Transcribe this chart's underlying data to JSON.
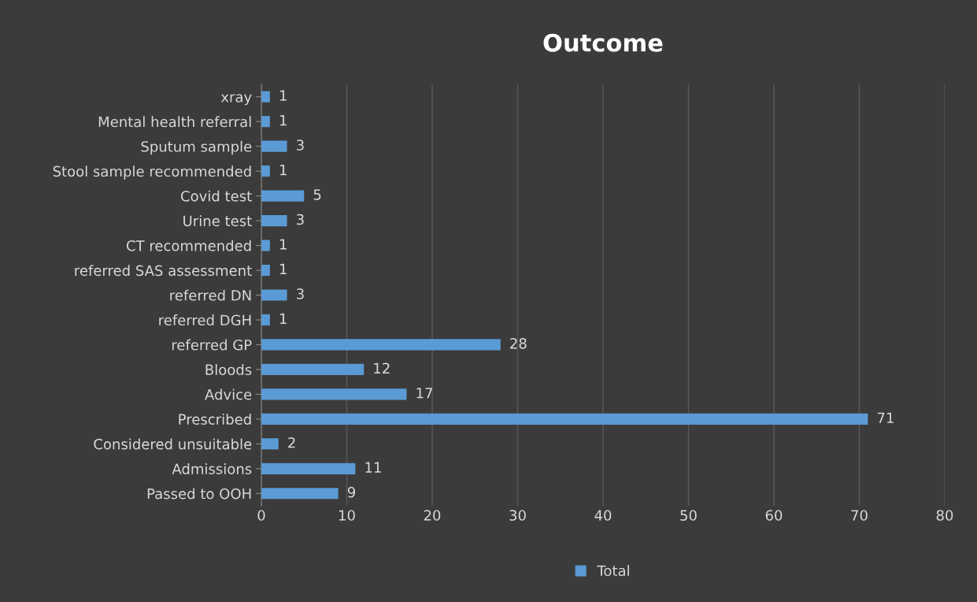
{
  "chart_data": {
    "type": "bar",
    "title": "Outcome",
    "orientation": "horizontal",
    "categories": [
      "xray",
      "Mental health referral",
      "Sputum sample",
      "Stool sample recommended",
      "Covid test",
      "Urine test",
      "CT recommended",
      "referred SAS assessment",
      "referred DN",
      "referred DGH",
      "referred GP",
      "Bloods",
      "Advice",
      "Prescribed",
      "Considered unsuitable",
      "Admissions",
      "Passed to OOH"
    ],
    "series": [
      {
        "name": "Total",
        "color": "#5b9bd5",
        "values": [
          1,
          1,
          3,
          1,
          5,
          3,
          1,
          1,
          3,
          1,
          28,
          12,
          17,
          71,
          2,
          11,
          9
        ]
      }
    ],
    "xlim": [
      0,
      80
    ],
    "xticks": [
      0,
      10,
      20,
      30,
      40,
      50,
      60,
      70,
      80
    ],
    "grid": "x",
    "legend": "bottom",
    "data_labels": true
  }
}
